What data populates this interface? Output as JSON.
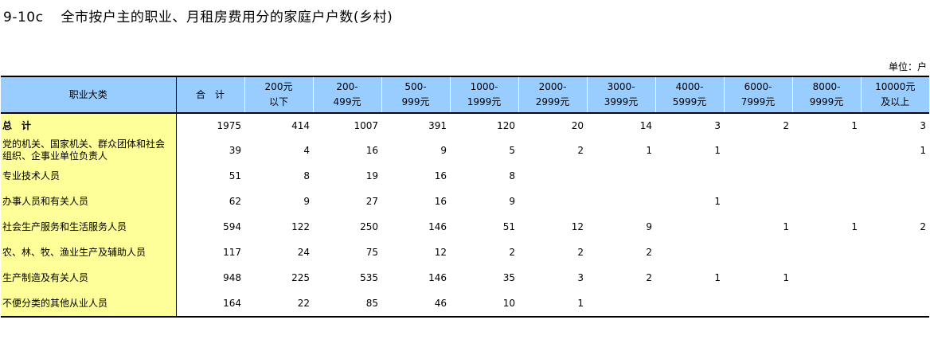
{
  "title": {
    "code": "9-10c",
    "text": "全市按户主的职业、月租房费用分的家庭户户数(乡村)"
  },
  "unit": "单位：户",
  "table": {
    "headers": [
      {
        "l1": "职业大类",
        "l2": ""
      },
      {
        "l1": "合　计",
        "l2": ""
      },
      {
        "l1": "200元",
        "l2": "以下"
      },
      {
        "l1": "200-",
        "l2": "499元"
      },
      {
        "l1": "500-",
        "l2": "999元"
      },
      {
        "l1": "1000-",
        "l2": "1999元"
      },
      {
        "l1": "2000-",
        "l2": "2999元"
      },
      {
        "l1": "3000-",
        "l2": "3999元"
      },
      {
        "l1": "4000-",
        "l2": "5999元"
      },
      {
        "l1": "6000-",
        "l2": "7999元"
      },
      {
        "l1": "8000-",
        "l2": "9999元"
      },
      {
        "l1": "10000元",
        "l2": "及以上"
      }
    ],
    "rows": [
      {
        "name": "总　计",
        "values": [
          "1975",
          "414",
          "1007",
          "391",
          "120",
          "20",
          "14",
          "3",
          "2",
          "1",
          "3"
        ]
      },
      {
        "name": "党的机关、国家机关、群众团体和社会组织、企事业单位负责人",
        "values": [
          "39",
          "4",
          "16",
          "9",
          "5",
          "2",
          "1",
          "1",
          "",
          "",
          "1"
        ]
      },
      {
        "name": "专业技术人员",
        "values": [
          "51",
          "8",
          "19",
          "16",
          "8",
          "",
          "",
          "",
          "",
          "",
          ""
        ]
      },
      {
        "name": "办事人员和有关人员",
        "values": [
          "62",
          "9",
          "27",
          "16",
          "9",
          "",
          "",
          "1",
          "",
          "",
          ""
        ]
      },
      {
        "name": "社会生产服务和生活服务人员",
        "values": [
          "594",
          "122",
          "250",
          "146",
          "51",
          "12",
          "9",
          "",
          "1",
          "1",
          "2"
        ]
      },
      {
        "name": "农、林、牧、渔业生产及辅助人员",
        "values": [
          "117",
          "24",
          "75",
          "12",
          "2",
          "2",
          "2",
          "",
          "",
          "",
          ""
        ]
      },
      {
        "name": "生产制造及有关人员",
        "values": [
          "948",
          "225",
          "535",
          "146",
          "35",
          "3",
          "2",
          "1",
          "1",
          "",
          ""
        ]
      },
      {
        "name": "不便分类的其他从业人员",
        "values": [
          "164",
          "22",
          "85",
          "46",
          "10",
          "1",
          "",
          "",
          "",
          "",
          ""
        ]
      }
    ]
  }
}
